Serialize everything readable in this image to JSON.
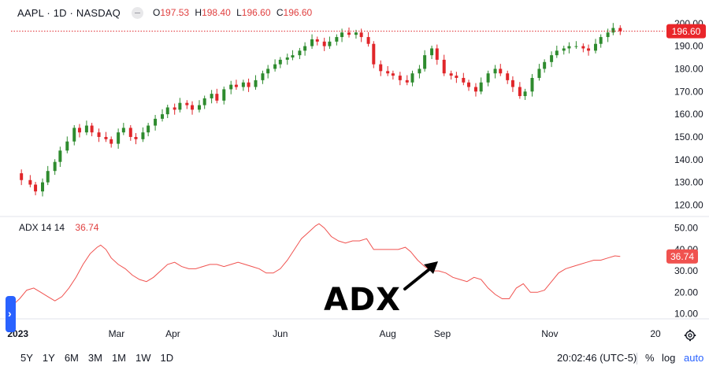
{
  "header": {
    "symbol": "AAPL · 1D · NASDAQ",
    "o_label": "O",
    "o_value": "197.53",
    "h_label": "H",
    "h_value": "198.40",
    "l_label": "L",
    "l_value": "196.60",
    "c_label": "C",
    "c_value": "196.60"
  },
  "indicator": {
    "name": "ADX 14 14",
    "value": "36.74"
  },
  "annotation": "ADX",
  "range_buttons": [
    "5Y",
    "1Y",
    "6M",
    "3M",
    "1M",
    "1W",
    "1D"
  ],
  "footer": {
    "clock": "20:02:46 (UTC-5)",
    "percent": "%",
    "log": "log",
    "auto": "auto"
  },
  "colors": {
    "up": "#26a69a",
    "down": "#ef5350",
    "up_candle": "#2e8b2e",
    "down_candle": "#e0262a",
    "adx_line": "#f0524f",
    "last_price_bg": "#e9262a",
    "accent": "#2962ff"
  },
  "icons": {
    "side_tab": "chevron-right-icon",
    "gear": "gear-icon",
    "hide": "eye-icon"
  },
  "chart_data": [
    {
      "type": "candlestick",
      "title": "AAPL · 1D · NASDAQ",
      "ylim": [
        116,
        202
      ],
      "y_ticks": [
        "200.00",
        "190.00",
        "180.00",
        "170.00",
        "160.00",
        "150.00",
        "140.00",
        "130.00",
        "120.00"
      ],
      "y_tick_values": [
        200,
        190,
        180,
        170,
        160,
        150,
        140,
        130,
        120
      ],
      "last_price": 196.6,
      "last_price_label": "196.60",
      "x_labels": [
        "2023",
        "Mar",
        "Apr",
        "Jun",
        "Aug",
        "Sep",
        "Nov",
        "20"
      ],
      "x_label_days": [
        3,
        59,
        91,
        152,
        213,
        244,
        305,
        365
      ],
      "xlim_days": [
        0,
        365
      ],
      "series_close": [
        {
          "d": 1,
          "c": 134
        },
        {
          "d": 5,
          "c": 131
        },
        {
          "d": 10,
          "c": 129
        },
        {
          "d": 13,
          "c": 126
        },
        {
          "d": 17,
          "c": 130
        },
        {
          "d": 20,
          "c": 135
        },
        {
          "d": 24,
          "c": 139
        },
        {
          "d": 27,
          "c": 144
        },
        {
          "d": 31,
          "c": 148
        },
        {
          "d": 35,
          "c": 154
        },
        {
          "d": 38,
          "c": 152
        },
        {
          "d": 42,
          "c": 155
        },
        {
          "d": 45,
          "c": 152
        },
        {
          "d": 49,
          "c": 150
        },
        {
          "d": 53,
          "c": 149
        },
        {
          "d": 56,
          "c": 147
        },
        {
          "d": 60,
          "c": 152
        },
        {
          "d": 63,
          "c": 154
        },
        {
          "d": 67,
          "c": 150
        },
        {
          "d": 70,
          "c": 149
        },
        {
          "d": 74,
          "c": 152
        },
        {
          "d": 77,
          "c": 155
        },
        {
          "d": 81,
          "c": 158
        },
        {
          "d": 85,
          "c": 160
        },
        {
          "d": 88,
          "c": 163
        },
        {
          "d": 92,
          "c": 162
        },
        {
          "d": 95,
          "c": 165
        },
        {
          "d": 99,
          "c": 164
        },
        {
          "d": 102,
          "c": 162
        },
        {
          "d": 106,
          "c": 164
        },
        {
          "d": 109,
          "c": 167
        },
        {
          "d": 113,
          "c": 169
        },
        {
          "d": 116,
          "c": 166
        },
        {
          "d": 120,
          "c": 171
        },
        {
          "d": 124,
          "c": 173
        },
        {
          "d": 127,
          "c": 172
        },
        {
          "d": 131,
          "c": 174
        },
        {
          "d": 134,
          "c": 172
        },
        {
          "d": 138,
          "c": 175
        },
        {
          "d": 142,
          "c": 178
        },
        {
          "d": 145,
          "c": 180
        },
        {
          "d": 149,
          "c": 182
        },
        {
          "d": 152,
          "c": 184
        },
        {
          "d": 156,
          "c": 185
        },
        {
          "d": 159,
          "c": 186
        },
        {
          "d": 163,
          "c": 188
        },
        {
          "d": 166,
          "c": 190
        },
        {
          "d": 170,
          "c": 193
        },
        {
          "d": 173,
          "c": 192
        },
        {
          "d": 177,
          "c": 190
        },
        {
          "d": 180,
          "c": 192
        },
        {
          "d": 184,
          "c": 194
        },
        {
          "d": 187,
          "c": 196
        },
        {
          "d": 191,
          "c": 195
        },
        {
          "d": 195,
          "c": 196
        },
        {
          "d": 198,
          "c": 194
        },
        {
          "d": 202,
          "c": 191
        },
        {
          "d": 205,
          "c": 182
        },
        {
          "d": 209,
          "c": 179
        },
        {
          "d": 213,
          "c": 178
        },
        {
          "d": 216,
          "c": 177
        },
        {
          "d": 220,
          "c": 175
        },
        {
          "d": 224,
          "c": 174
        },
        {
          "d": 227,
          "c": 178
        },
        {
          "d": 231,
          "c": 180
        },
        {
          "d": 234,
          "c": 186
        },
        {
          "d": 238,
          "c": 189
        },
        {
          "d": 241,
          "c": 184
        },
        {
          "d": 245,
          "c": 178
        },
        {
          "d": 249,
          "c": 177
        },
        {
          "d": 252,
          "c": 176
        },
        {
          "d": 256,
          "c": 174
        },
        {
          "d": 259,
          "c": 172
        },
        {
          "d": 263,
          "c": 170
        },
        {
          "d": 266,
          "c": 174
        },
        {
          "d": 270,
          "c": 178
        },
        {
          "d": 274,
          "c": 180
        },
        {
          "d": 277,
          "c": 178
        },
        {
          "d": 281,
          "c": 175
        },
        {
          "d": 284,
          "c": 172
        },
        {
          "d": 288,
          "c": 168
        },
        {
          "d": 291,
          "c": 170
        },
        {
          "d": 295,
          "c": 176
        },
        {
          "d": 299,
          "c": 180
        },
        {
          "d": 302,
          "c": 183
        },
        {
          "d": 306,
          "c": 186
        },
        {
          "d": 309,
          "c": 188
        },
        {
          "d": 313,
          "c": 189
        },
        {
          "d": 316,
          "c": 190
        },
        {
          "d": 320,
          "c": 190
        },
        {
          "d": 324,
          "c": 189
        },
        {
          "d": 327,
          "c": 188
        },
        {
          "d": 331,
          "c": 191
        },
        {
          "d": 334,
          "c": 194
        },
        {
          "d": 338,
          "c": 196
        },
        {
          "d": 341,
          "c": 198
        },
        {
          "d": 345,
          "c": 196.6
        }
      ]
    },
    {
      "type": "line",
      "title": "ADX 14 14",
      "ylim": [
        8,
        55
      ],
      "y_ticks": [
        "50.00",
        "40.00",
        "30.00",
        "20.00",
        "10.00"
      ],
      "y_tick_values": [
        50,
        40,
        30,
        20,
        10
      ],
      "last_value": 36.74,
      "last_value_label": "36.74",
      "series": [
        {
          "name": "ADX 14 14",
          "points": [
            [
              0,
              14
            ],
            [
              4,
              17
            ],
            [
              8,
              21
            ],
            [
              12,
              22
            ],
            [
              16,
              20
            ],
            [
              20,
              18
            ],
            [
              24,
              16
            ],
            [
              28,
              18
            ],
            [
              32,
              22
            ],
            [
              36,
              27
            ],
            [
              40,
              33
            ],
            [
              44,
              38
            ],
            [
              48,
              41
            ],
            [
              50,
              42
            ],
            [
              53,
              40
            ],
            [
              56,
              36
            ],
            [
              60,
              33
            ],
            [
              64,
              31
            ],
            [
              68,
              28
            ],
            [
              72,
              26
            ],
            [
              76,
              25
            ],
            [
              80,
              27
            ],
            [
              84,
              30
            ],
            [
              88,
              33
            ],
            [
              92,
              34
            ],
            [
              96,
              32
            ],
            [
              100,
              31
            ],
            [
              104,
              31
            ],
            [
              108,
              32
            ],
            [
              112,
              33
            ],
            [
              116,
              33
            ],
            [
              120,
              32
            ],
            [
              124,
              33
            ],
            [
              128,
              34
            ],
            [
              132,
              33
            ],
            [
              136,
              32
            ],
            [
              140,
              31
            ],
            [
              144,
              29
            ],
            [
              148,
              29
            ],
            [
              152,
              31
            ],
            [
              156,
              35
            ],
            [
              160,
              40
            ],
            [
              164,
              45
            ],
            [
              168,
              48
            ],
            [
              172,
              51
            ],
            [
              174,
              52
            ],
            [
              177,
              50
            ],
            [
              181,
              46
            ],
            [
              185,
              44
            ],
            [
              189,
              43
            ],
            [
              193,
              44
            ],
            [
              197,
              44
            ],
            [
              201,
              45
            ],
            [
              205,
              40
            ],
            [
              210,
              40
            ],
            [
              215,
              40
            ],
            [
              219,
              40
            ],
            [
              223,
              41
            ],
            [
              226,
              39
            ],
            [
              230,
              35
            ],
            [
              234,
              32
            ],
            [
              238,
              30
            ],
            [
              242,
              30
            ],
            [
              246,
              29
            ],
            [
              250,
              27
            ],
            [
              254,
              26
            ],
            [
              258,
              25
            ],
            [
              262,
              27
            ],
            [
              266,
              26
            ],
            [
              270,
              22
            ],
            [
              274,
              19
            ],
            [
              278,
              17
            ],
            [
              282,
              17
            ],
            [
              286,
              22
            ],
            [
              290,
              24
            ],
            [
              294,
              20
            ],
            [
              298,
              20
            ],
            [
              302,
              21
            ],
            [
              306,
              25
            ],
            [
              310,
              29
            ],
            [
              314,
              31
            ],
            [
              318,
              32
            ],
            [
              322,
              33
            ],
            [
              326,
              34
            ],
            [
              330,
              35
            ],
            [
              334,
              35
            ],
            [
              338,
              36
            ],
            [
              342,
              37
            ],
            [
              345,
              36.74
            ]
          ]
        }
      ]
    }
  ]
}
